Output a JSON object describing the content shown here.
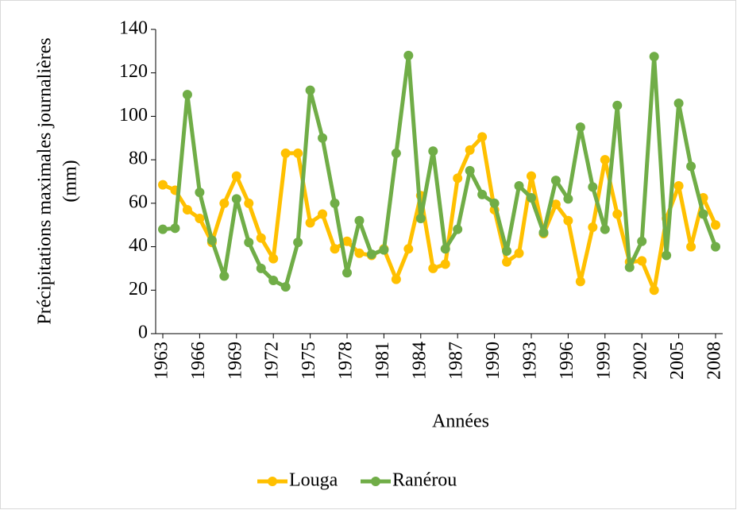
{
  "chart_data": {
    "type": "line",
    "y_label": [
      "Précipitations maximales journalières",
      "(mm)"
    ],
    "x_label": "Années",
    "x": [
      1963,
      1964,
      1965,
      1966,
      1967,
      1968,
      1969,
      1970,
      1971,
      1972,
      1973,
      1974,
      1975,
      1976,
      1977,
      1978,
      1979,
      1980,
      1981,
      1982,
      1983,
      1984,
      1985,
      1986,
      1987,
      1988,
      1989,
      1990,
      1991,
      1992,
      1993,
      1994,
      1995,
      1996,
      1997,
      1998,
      1999,
      2000,
      2001,
      2002,
      2003,
      2004,
      2005,
      2006,
      2007,
      2008
    ],
    "series": [
      {
        "name": "Louga",
        "color": "#FFC000",
        "values": [
          68.5,
          66,
          57,
          53,
          42,
          60,
          72.5,
          60,
          44,
          34.5,
          83,
          83,
          51,
          55,
          39,
          42.5,
          37,
          36,
          39,
          25,
          39,
          63.5,
          30,
          32,
          71.5,
          84.5,
          90.5,
          57,
          33,
          37,
          72.5,
          46,
          59.5,
          52,
          24,
          49,
          80,
          55,
          33,
          33.5,
          20,
          53,
          68,
          40,
          62.5,
          50
        ]
      },
      {
        "name": "Ranérou",
        "color": "#70AD47",
        "values": [
          48,
          48.5,
          110,
          65,
          43,
          26.5,
          62,
          42,
          30,
          24.5,
          21.5,
          42,
          112,
          90,
          60,
          28,
          52,
          36.5,
          38.5,
          83,
          128,
          53,
          84,
          39,
          48,
          75,
          64,
          60,
          38,
          68,
          62.5,
          46.5,
          70.5,
          62,
          95,
          67.5,
          48,
          105,
          30.5,
          42.5,
          127.5,
          36,
          106,
          77,
          55,
          40
        ]
      }
    ],
    "xlim": [
      1963,
      2008
    ],
    "xticks": [
      1963,
      1966,
      1969,
      1972,
      1975,
      1978,
      1981,
      1984,
      1987,
      1990,
      1993,
      1996,
      1999,
      2002,
      2005,
      2008
    ],
    "ylim": [
      0,
      140
    ],
    "yticks": [
      0,
      20,
      40,
      60,
      80,
      100,
      120,
      140
    ],
    "grid": false,
    "legend": "bottom"
  }
}
